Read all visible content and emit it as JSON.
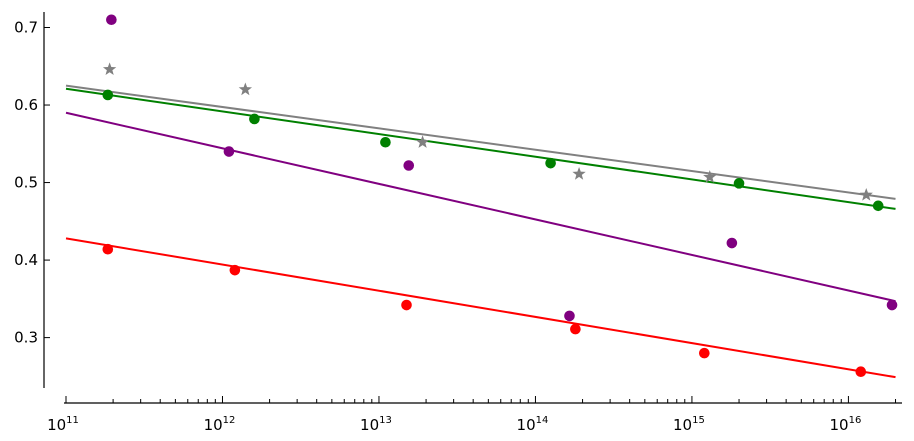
{
  "chart_data": {
    "type": "scatter",
    "title": "",
    "xlabel": "",
    "ylabel": "",
    "x_scale": "log",
    "xlim": [
      100000000000.0,
      2.2e+16
    ],
    "ylim": [
      0.235,
      0.72
    ],
    "grid": false,
    "x_ticks": [
      {
        "value": 100000000000.0,
        "base": "10",
        "exp": "11"
      },
      {
        "value": 1000000000000.0,
        "base": "10",
        "exp": "12"
      },
      {
        "value": 10000000000000.0,
        "base": "10",
        "exp": "13"
      },
      {
        "value": 100000000000000.0,
        "base": "10",
        "exp": "14"
      },
      {
        "value": 1000000000000000.0,
        "base": "10",
        "exp": "15"
      },
      {
        "value": 1e+16,
        "base": "10",
        "exp": "16"
      }
    ],
    "y_ticks": [
      {
        "value": 0.3,
        "label": "0.3"
      },
      {
        "value": 0.4,
        "label": "0.4"
      },
      {
        "value": 0.5,
        "label": "0.5"
      },
      {
        "value": 0.6,
        "label": "0.6"
      },
      {
        "value": 0.7,
        "label": "0.7"
      }
    ],
    "series": [
      {
        "color": "#808080",
        "marker": "star",
        "points": [
          [
            190000000000.0,
            0.646
          ],
          [
            1400000000000.0,
            0.62
          ],
          [
            19000000000000.0,
            0.552
          ],
          [
            190000000000000.0,
            0.511
          ],
          [
            1300000000000000.0,
            0.507
          ],
          [
            1.3e+16,
            0.484
          ]
        ],
        "fit": [
          [
            100000000000.0,
            0.625
          ],
          [
            2e+16,
            0.479
          ]
        ]
      },
      {
        "color": "#008000",
        "marker": "circle",
        "points": [
          [
            185000000000.0,
            0.613
          ],
          [
            1600000000000.0,
            0.582
          ],
          [
            11000000000000.0,
            0.552
          ],
          [
            125000000000000.0,
            0.525
          ],
          [
            2000000000000000.0,
            0.499
          ],
          [
            1.55e+16,
            0.47
          ]
        ],
        "fit": [
          [
            100000000000.0,
            0.621
          ],
          [
            2e+16,
            0.466
          ]
        ]
      },
      {
        "color": "#800080",
        "marker": "circle",
        "points": [
          [
            195000000000.0,
            0.71
          ],
          [
            1100000000000.0,
            0.54
          ],
          [
            15500000000000.0,
            0.522
          ],
          [
            165000000000000.0,
            0.328
          ],
          [
            1800000000000000.0,
            0.422
          ],
          [
            1.9e+16,
            0.342
          ]
        ],
        "fit": [
          [
            100000000000.0,
            0.59
          ],
          [
            2e+16,
            0.347
          ]
        ]
      },
      {
        "color": "#ff0000",
        "marker": "circle",
        "points": [
          [
            185000000000.0,
            0.414
          ],
          [
            1200000000000.0,
            0.387
          ],
          [
            15000000000000.0,
            0.342
          ],
          [
            180000000000000.0,
            0.311
          ],
          [
            1200000000000000.0,
            0.28
          ],
          [
            1.2e+16,
            0.256
          ]
        ],
        "fit": [
          [
            100000000000.0,
            0.428
          ],
          [
            2e+16,
            0.249
          ]
        ]
      }
    ]
  }
}
